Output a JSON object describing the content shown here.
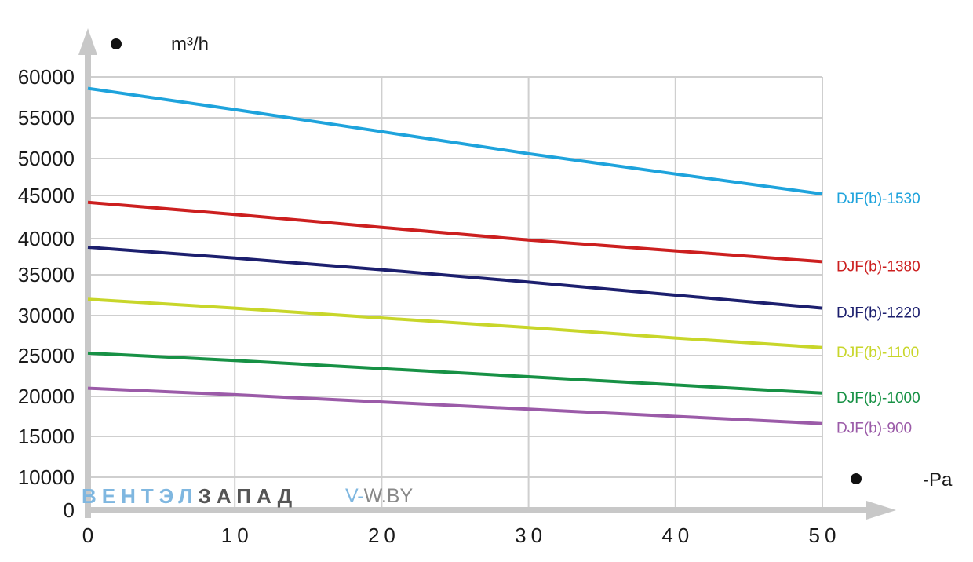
{
  "chart_data": {
    "type": "line",
    "ylabel": "m³/h",
    "xlabel": "-Pa",
    "xlim": [
      0,
      50
    ],
    "ylim": [
      0,
      60000
    ],
    "grid": true,
    "x_ticks": [
      "0",
      "10",
      "20",
      "30",
      "40",
      "50"
    ],
    "y_ticks": [
      "60000",
      "55000",
      "50000",
      "45000",
      "40000",
      "35000",
      "30000",
      "25000",
      "20000",
      "15000",
      "10000",
      "0"
    ],
    "series": [
      {
        "name": "DJF(b)-1530",
        "color": "#1ea3dc",
        "x": [
          0,
          10,
          20,
          30,
          40,
          50
        ],
        "values": [
          58600,
          56000,
          53300,
          50600,
          47900,
          45200
        ]
      },
      {
        "name": "DJF(b)-1380",
        "color": "#cc1f1f",
        "x": [
          0,
          10,
          20,
          30,
          40,
          50
        ],
        "values": [
          44200,
          42800,
          41300,
          39800,
          38300,
          36800
        ]
      },
      {
        "name": "DJF(b)-1220",
        "color": "#1c1f6e",
        "x": [
          0,
          10,
          20,
          30,
          40,
          50
        ],
        "values": [
          38800,
          37300,
          35700,
          34100,
          32500,
          30900
        ]
      },
      {
        "name": "DJF(b)-1100",
        "color": "#c8d62a",
        "x": [
          0,
          10,
          20,
          30,
          40,
          50
        ],
        "values": [
          32000,
          30900,
          29700,
          28500,
          27200,
          26000
        ]
      },
      {
        "name": "DJF(b)-1000",
        "color": "#179145",
        "x": [
          0,
          10,
          20,
          30,
          40,
          50
        ],
        "values": [
          25300,
          24400,
          23400,
          22400,
          21400,
          20400
        ]
      },
      {
        "name": "DJF(b)-900",
        "color": "#9b5ba8",
        "x": [
          0,
          10,
          20,
          30,
          40,
          50
        ],
        "values": [
          21000,
          20200,
          19300,
          18400,
          17500,
          16600
        ]
      }
    ]
  },
  "watermark": {
    "part1": "ВЕНТЭЛ",
    "part2": "ЗАПАД",
    "site_prefix": "V-",
    "site_rest": "W.BY",
    "color1": "#7fb7e0",
    "color2": "#555555",
    "site_color1": "#7fb7e0",
    "site_color2": "#888888"
  }
}
